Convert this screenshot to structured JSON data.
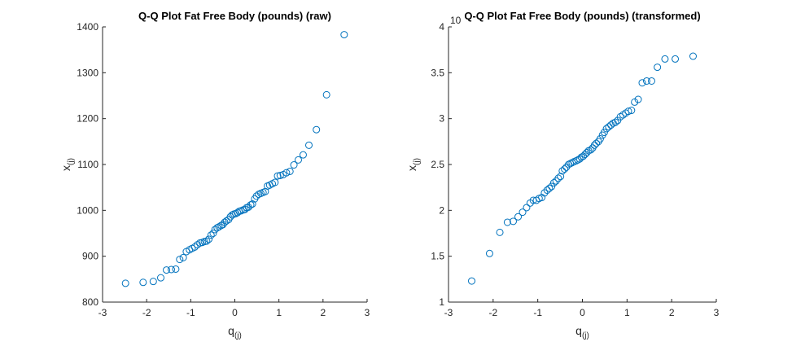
{
  "chart_data": [
    {
      "type": "scatter",
      "title": "Q-Q Plot Fat Free Body (pounds) (raw)",
      "xlabel_main": "q",
      "xlabel_sub": "(j)",
      "ylabel_main": "x",
      "ylabel_sub": "(j)",
      "xlim": [
        -3,
        3
      ],
      "ylim": [
        800,
        1400
      ],
      "xticks": [
        -3,
        -2,
        -1,
        0,
        1,
        2,
        3
      ],
      "yticks": [
        800,
        900,
        1000,
        1100,
        1200,
        1300,
        1400
      ],
      "exponent_label": "",
      "marker_color": "#0072BD",
      "points": [
        [
          -2.48,
          841
        ],
        [
          -2.08,
          843
        ],
        [
          -1.85,
          845
        ],
        [
          -1.68,
          853
        ],
        [
          -1.55,
          870
        ],
        [
          -1.44,
          871
        ],
        [
          -1.34,
          872
        ],
        [
          -1.25,
          893
        ],
        [
          -1.17,
          897
        ],
        [
          -1.1,
          910
        ],
        [
          -1.03,
          914
        ],
        [
          -0.97,
          917
        ],
        [
          -0.91,
          920
        ],
        [
          -0.85,
          925
        ],
        [
          -0.79,
          929
        ],
        [
          -0.74,
          930
        ],
        [
          -0.69,
          932
        ],
        [
          -0.64,
          933
        ],
        [
          -0.59,
          937
        ],
        [
          -0.54,
          946
        ],
        [
          -0.49,
          950
        ],
        [
          -0.45,
          958
        ],
        [
          -0.4,
          962
        ],
        [
          -0.36,
          964
        ],
        [
          -0.31,
          967
        ],
        [
          -0.27,
          969
        ],
        [
          -0.23,
          974
        ],
        [
          -0.19,
          977
        ],
        [
          -0.14,
          980
        ],
        [
          -0.1,
          986
        ],
        [
          -0.06,
          990
        ],
        [
          -0.02,
          992
        ],
        [
          0.02,
          993
        ],
        [
          0.06,
          995
        ],
        [
          0.1,
          998
        ],
        [
          0.14,
          999
        ],
        [
          0.19,
          1001
        ],
        [
          0.23,
          1002
        ],
        [
          0.27,
          1006
        ],
        [
          0.31,
          1007
        ],
        [
          0.36,
          1012
        ],
        [
          0.4,
          1014
        ],
        [
          0.45,
          1025
        ],
        [
          0.49,
          1031
        ],
        [
          0.54,
          1035
        ],
        [
          0.59,
          1037
        ],
        [
          0.64,
          1039
        ],
        [
          0.69,
          1041
        ],
        [
          0.74,
          1053
        ],
        [
          0.79,
          1055
        ],
        [
          0.85,
          1058
        ],
        [
          0.91,
          1061
        ],
        [
          0.97,
          1075
        ],
        [
          1.03,
          1076
        ],
        [
          1.1,
          1078
        ],
        [
          1.17,
          1082
        ],
        [
          1.25,
          1085
        ],
        [
          1.34,
          1099
        ],
        [
          1.44,
          1110
        ],
        [
          1.55,
          1121
        ],
        [
          1.68,
          1142
        ],
        [
          1.85,
          1176
        ],
        [
          2.08,
          1252
        ],
        [
          2.48,
          1383
        ]
      ]
    },
    {
      "type": "scatter",
      "title": "Q-Q Plot Fat Free Body (pounds) (transformed)",
      "xlabel_main": "q",
      "xlabel_sub": "(j)",
      "ylabel_main": "x",
      "ylabel_sub": "(j)",
      "xlim": [
        -3,
        3
      ],
      "ylim": [
        1,
        4
      ],
      "xticks": [
        -3,
        -2,
        -1,
        0,
        1,
        2,
        3
      ],
      "yticks": [
        1,
        1.5,
        2,
        2.5,
        3,
        3.5,
        4
      ],
      "exponent_label": "10",
      "marker_color": "#0072BD",
      "points": [
        [
          -2.48,
          1.23
        ],
        [
          -2.08,
          1.53
        ],
        [
          -1.85,
          1.76
        ],
        [
          -1.68,
          1.87
        ],
        [
          -1.55,
          1.88
        ],
        [
          -1.44,
          1.93
        ],
        [
          -1.34,
          1.98
        ],
        [
          -1.25,
          2.03
        ],
        [
          -1.17,
          2.08
        ],
        [
          -1.1,
          2.11
        ],
        [
          -1.03,
          2.11
        ],
        [
          -0.97,
          2.13
        ],
        [
          -0.91,
          2.14
        ],
        [
          -0.85,
          2.19
        ],
        [
          -0.79,
          2.22
        ],
        [
          -0.74,
          2.24
        ],
        [
          -0.69,
          2.26
        ],
        [
          -0.64,
          2.3
        ],
        [
          -0.59,
          2.32
        ],
        [
          -0.54,
          2.35
        ],
        [
          -0.49,
          2.37
        ],
        [
          -0.45,
          2.43
        ],
        [
          -0.4,
          2.45
        ],
        [
          -0.36,
          2.47
        ],
        [
          -0.31,
          2.5
        ],
        [
          -0.27,
          2.51
        ],
        [
          -0.23,
          2.52
        ],
        [
          -0.19,
          2.53
        ],
        [
          -0.14,
          2.54
        ],
        [
          -0.1,
          2.55
        ],
        [
          -0.06,
          2.56
        ],
        [
          -0.02,
          2.58
        ],
        [
          0.02,
          2.59
        ],
        [
          0.06,
          2.61
        ],
        [
          0.1,
          2.63
        ],
        [
          0.14,
          2.65
        ],
        [
          0.19,
          2.66
        ],
        [
          0.23,
          2.68
        ],
        [
          0.27,
          2.71
        ],
        [
          0.31,
          2.73
        ],
        [
          0.36,
          2.75
        ],
        [
          0.4,
          2.78
        ],
        [
          0.45,
          2.82
        ],
        [
          0.49,
          2.85
        ],
        [
          0.54,
          2.89
        ],
        [
          0.59,
          2.91
        ],
        [
          0.64,
          2.93
        ],
        [
          0.69,
          2.95
        ],
        [
          0.74,
          2.96
        ],
        [
          0.79,
          2.98
        ],
        [
          0.85,
          3.02
        ],
        [
          0.91,
          3.04
        ],
        [
          0.97,
          3.06
        ],
        [
          1.03,
          3.08
        ],
        [
          1.1,
          3.09
        ],
        [
          1.17,
          3.18
        ],
        [
          1.25,
          3.21
        ],
        [
          1.34,
          3.39
        ],
        [
          1.44,
          3.41
        ],
        [
          1.55,
          3.41
        ],
        [
          1.68,
          3.56
        ],
        [
          1.85,
          3.65
        ],
        [
          2.08,
          3.65
        ],
        [
          2.48,
          3.68
        ]
      ]
    }
  ]
}
